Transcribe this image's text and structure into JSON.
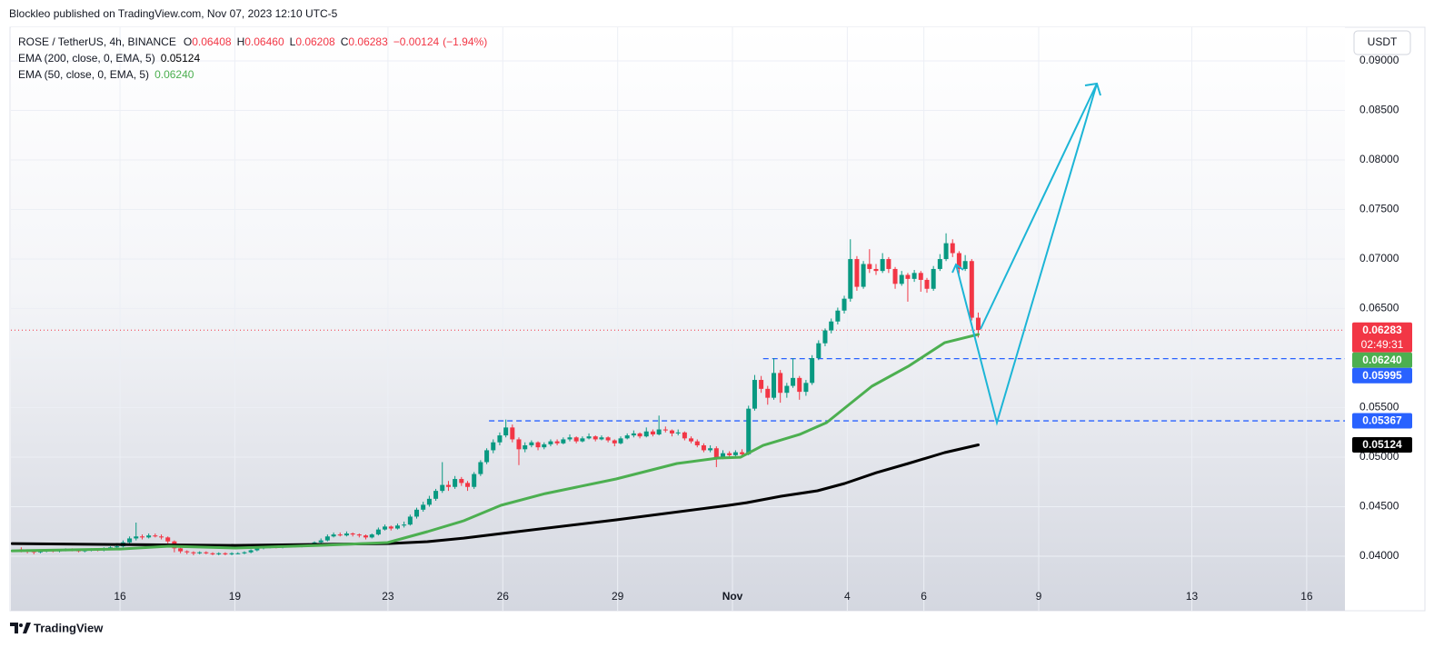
{
  "header": {
    "text": "Blockleo published on TradingView.com, Nov 07, 2023 12:10 UTC-5"
  },
  "footer": {
    "brand": "TradingView"
  },
  "chart_data": {
    "type": "candlestick",
    "currency_button": "USDT",
    "legend": {
      "symbol": "ROSE / TetherUS, 4h, BINANCE",
      "ohlc": [
        {
          "key": "O",
          "value": 0.06408
        },
        {
          "key": "H",
          "value": 0.0646,
          "label": "0.06460"
        },
        {
          "key": "L",
          "value": 0.06208
        },
        {
          "key": "C",
          "value": 0.06283
        }
      ],
      "change": {
        "value": -0.00124,
        "label": "−0.00124"
      },
      "change_pct": {
        "value": -1.94,
        "label": "(−1.94%)"
      },
      "color": "#f23645",
      "indicators": [
        {
          "name": "EMA (200, close, 0, EMA, 5)",
          "value": 0.05124,
          "color": "#000000"
        },
        {
          "name": "EMA (50, close, 0, EMA, 5)",
          "value": 0.0624,
          "label": "0.06240",
          "color": "#4caf50"
        }
      ]
    },
    "up_color": "#089981",
    "down_color": "#f23645",
    "xlim": [
      13.15,
      48
    ],
    "ylim": [
      0.0345,
      0.0934
    ],
    "xticks": [
      16,
      19,
      23,
      26,
      29,
      {
        "value": 32,
        "label": "Nov"
      },
      {
        "value": 35,
        "label": "4"
      },
      {
        "value": 37,
        "label": "6"
      },
      {
        "value": 40,
        "label": "9"
      },
      {
        "value": 44,
        "label": "13"
      },
      {
        "value": 47,
        "label": "16"
      }
    ],
    "yticks": [
      {
        "value": 0.04,
        "label": "0.04000"
      },
      {
        "value": 0.045,
        "label": "0.04500"
      },
      {
        "value": 0.05,
        "label": "0.05000"
      },
      {
        "value": 0.055,
        "label": "0.05500"
      },
      {
        "value": 0.06,
        "label": "0.06000"
      },
      {
        "value": 0.065,
        "label": "0.06500"
      },
      {
        "value": 0.07,
        "label": "0.07000"
      },
      {
        "value": 0.075,
        "label": "0.07500"
      },
      {
        "value": 0.08,
        "label": "0.08000"
      },
      {
        "value": 0.085,
        "label": "0.08500"
      },
      {
        "value": 0.09,
        "label": "0.09000"
      }
    ],
    "grid": true,
    "x": [
      13.42,
      13.58,
      13.75,
      13.92,
      14.08,
      14.25,
      14.42,
      14.58,
      14.75,
      14.92,
      15.08,
      15.25,
      15.42,
      15.58,
      15.75,
      15.92,
      16.08,
      16.25,
      16.42,
      16.58,
      16.75,
      16.92,
      17.08,
      17.25,
      17.42,
      17.58,
      17.75,
      17.92,
      18.08,
      18.25,
      18.42,
      18.58,
      18.75,
      18.92,
      19.08,
      19.25,
      19.42,
      19.58,
      19.75,
      19.92,
      20.08,
      20.25,
      20.42,
      20.58,
      20.75,
      20.92,
      21.08,
      21.25,
      21.42,
      21.58,
      21.75,
      21.92,
      22.08,
      22.25,
      22.42,
      22.58,
      22.75,
      22.92,
      23.08,
      23.25,
      23.42,
      23.58,
      23.75,
      23.92,
      24.08,
      24.25,
      24.42,
      24.58,
      24.75,
      24.92,
      25.08,
      25.25,
      25.42,
      25.58,
      25.75,
      25.92,
      26.08,
      26.25,
      26.42,
      26.58,
      26.75,
      26.92,
      27.08,
      27.25,
      27.42,
      27.58,
      27.75,
      27.92,
      28.08,
      28.25,
      28.42,
      28.58,
      28.75,
      28.92,
      29.08,
      29.25,
      29.42,
      29.58,
      29.75,
      29.92,
      30.08,
      30.25,
      30.42,
      30.58,
      30.75,
      30.92,
      31.08,
      31.25,
      31.42,
      31.58,
      31.75,
      31.92,
      32.08,
      32.25,
      32.42,
      32.58,
      32.75,
      32.92,
      33.08,
      33.25,
      33.42,
      33.58,
      33.75,
      33.92,
      34.08,
      34.25,
      34.42,
      34.58,
      34.75,
      34.92,
      35.08,
      35.25,
      35.42,
      35.58,
      35.75,
      35.92,
      36.08,
      36.25,
      36.42,
      36.58,
      36.75,
      36.92,
      37.08,
      37.25,
      37.42,
      37.58,
      37.75,
      37.92,
      38.08,
      38.25,
      38.42
    ],
    "candles": [
      [
        0.0407,
        0.0409,
        0.0404,
        0.0406
      ],
      [
        0.0406,
        0.0407,
        0.0403,
        0.0405
      ],
      [
        0.0405,
        0.0406,
        0.0402,
        0.0404
      ],
      [
        0.0404,
        0.0406,
        0.0403,
        0.0405
      ],
      [
        0.0405,
        0.0407,
        0.0404,
        0.0406
      ],
      [
        0.0406,
        0.0407,
        0.0404,
        0.0405
      ],
      [
        0.0405,
        0.0407,
        0.0404,
        0.0406
      ],
      [
        0.0406,
        0.0408,
        0.0405,
        0.0407
      ],
      [
        0.0407,
        0.0408,
        0.0405,
        0.0406
      ],
      [
        0.0406,
        0.0407,
        0.0404,
        0.0405
      ],
      [
        0.0405,
        0.0407,
        0.0404,
        0.0406
      ],
      [
        0.0406,
        0.0408,
        0.0405,
        0.0407
      ],
      [
        0.0407,
        0.0408,
        0.0405,
        0.0406
      ],
      [
        0.0406,
        0.0409,
        0.0405,
        0.0408
      ],
      [
        0.0408,
        0.041,
        0.0407,
        0.0409
      ],
      [
        0.0409,
        0.0412,
        0.0408,
        0.041
      ],
      [
        0.041,
        0.0416,
        0.0409,
        0.0414
      ],
      [
        0.0414,
        0.042,
        0.0413,
        0.0418
      ],
      [
        0.0418,
        0.0434,
        0.0416,
        0.042
      ],
      [
        0.042,
        0.0422,
        0.0417,
        0.0419
      ],
      [
        0.0419,
        0.0423,
        0.0418,
        0.0421
      ],
      [
        0.0421,
        0.0423,
        0.0419,
        0.042
      ],
      [
        0.042,
        0.0422,
        0.0417,
        0.0419
      ],
      [
        0.0419,
        0.042,
        0.0413,
        0.0415
      ],
      [
        0.0415,
        0.0416,
        0.0404,
        0.0408
      ],
      [
        0.0408,
        0.0409,
        0.0403,
        0.0405
      ],
      [
        0.0405,
        0.0406,
        0.0402,
        0.0404
      ],
      [
        0.0404,
        0.0405,
        0.0401,
        0.0403
      ],
      [
        0.0403,
        0.0405,
        0.0402,
        0.0404
      ],
      [
        0.0404,
        0.0405,
        0.0402,
        0.0403
      ],
      [
        0.0403,
        0.0404,
        0.0401,
        0.0402
      ],
      [
        0.0402,
        0.0404,
        0.0401,
        0.0403
      ],
      [
        0.0403,
        0.0404,
        0.0401,
        0.0402
      ],
      [
        0.0402,
        0.0404,
        0.0401,
        0.0403
      ],
      [
        0.0403,
        0.0404,
        0.0402,
        0.0403
      ],
      [
        0.0403,
        0.0405,
        0.0402,
        0.0404
      ],
      [
        0.0404,
        0.0407,
        0.0403,
        0.0406
      ],
      [
        0.0406,
        0.0409,
        0.0405,
        0.0408
      ],
      [
        0.0408,
        0.0411,
        0.0407,
        0.0409
      ],
      [
        0.0409,
        0.0412,
        0.0408,
        0.041
      ],
      [
        0.041,
        0.0411,
        0.0408,
        0.0409
      ],
      [
        0.0409,
        0.0411,
        0.0408,
        0.041
      ],
      [
        0.041,
        0.0412,
        0.0409,
        0.0411
      ],
      [
        0.0411,
        0.0412,
        0.0409,
        0.041
      ],
      [
        0.041,
        0.0412,
        0.0409,
        0.0411
      ],
      [
        0.0411,
        0.0413,
        0.041,
        0.0412
      ],
      [
        0.0412,
        0.0415,
        0.0411,
        0.0414
      ],
      [
        0.0414,
        0.0418,
        0.0413,
        0.0416
      ],
      [
        0.0416,
        0.0422,
        0.0415,
        0.042
      ],
      [
        0.042,
        0.0424,
        0.0419,
        0.0422
      ],
      [
        0.0422,
        0.0424,
        0.042,
        0.0421
      ],
      [
        0.0421,
        0.0425,
        0.042,
        0.0423
      ],
      [
        0.0423,
        0.0424,
        0.042,
        0.0422
      ],
      [
        0.0422,
        0.0423,
        0.0419,
        0.0421
      ],
      [
        0.0421,
        0.0422,
        0.0417,
        0.0419
      ],
      [
        0.0419,
        0.0423,
        0.0418,
        0.0422
      ],
      [
        0.0422,
        0.0429,
        0.0421,
        0.0427
      ],
      [
        0.0427,
        0.0432,
        0.0426,
        0.043
      ],
      [
        0.043,
        0.0431,
        0.0426,
        0.0428
      ],
      [
        0.0428,
        0.0433,
        0.0427,
        0.0431
      ],
      [
        0.0431,
        0.0435,
        0.0429,
        0.0432
      ],
      [
        0.0432,
        0.0442,
        0.0431,
        0.044
      ],
      [
        0.044,
        0.0449,
        0.0438,
        0.0447
      ],
      [
        0.0447,
        0.0455,
        0.0445,
        0.0452
      ],
      [
        0.0452,
        0.0461,
        0.045,
        0.0458
      ],
      [
        0.0458,
        0.0468,
        0.0456,
        0.0466
      ],
      [
        0.0466,
        0.0495,
        0.0464,
        0.0472
      ],
      [
        0.0472,
        0.0476,
        0.0466,
        0.047
      ],
      [
        0.047,
        0.0481,
        0.0468,
        0.0478
      ],
      [
        0.0478,
        0.048,
        0.0471,
        0.0474
      ],
      [
        0.0474,
        0.0476,
        0.0466,
        0.047
      ],
      [
        0.047,
        0.0485,
        0.0468,
        0.0483
      ],
      [
        0.0483,
        0.0497,
        0.0481,
        0.0495
      ],
      [
        0.0495,
        0.0509,
        0.0493,
        0.0507
      ],
      [
        0.0507,
        0.0518,
        0.0504,
        0.0515
      ],
      [
        0.0515,
        0.0525,
        0.0512,
        0.0522
      ],
      [
        0.0522,
        0.0538,
        0.052,
        0.053
      ],
      [
        0.053,
        0.0533,
        0.0515,
        0.0518
      ],
      [
        0.0518,
        0.052,
        0.0492,
        0.0508
      ],
      [
        0.0508,
        0.0515,
        0.0505,
        0.0512
      ],
      [
        0.0512,
        0.0517,
        0.051,
        0.0515
      ],
      [
        0.0515,
        0.0516,
        0.0507,
        0.051
      ],
      [
        0.051,
        0.0515,
        0.0508,
        0.0513
      ],
      [
        0.0513,
        0.0518,
        0.0511,
        0.0516
      ],
      [
        0.0516,
        0.0518,
        0.0512,
        0.0514
      ],
      [
        0.0514,
        0.052,
        0.0513,
        0.0518
      ],
      [
        0.0518,
        0.0523,
        0.0516,
        0.052
      ],
      [
        0.052,
        0.0521,
        0.0514,
        0.0516
      ],
      [
        0.0516,
        0.0521,
        0.0515,
        0.0519
      ],
      [
        0.0519,
        0.0524,
        0.0518,
        0.0521
      ],
      [
        0.0521,
        0.0522,
        0.0516,
        0.0518
      ],
      [
        0.0518,
        0.0522,
        0.0517,
        0.052
      ],
      [
        0.052,
        0.0521,
        0.0515,
        0.0517
      ],
      [
        0.0517,
        0.0518,
        0.0511,
        0.0514
      ],
      [
        0.0514,
        0.0521,
        0.0513,
        0.0519
      ],
      [
        0.0519,
        0.0524,
        0.0518,
        0.0522
      ],
      [
        0.0522,
        0.0527,
        0.052,
        0.0524
      ],
      [
        0.0524,
        0.0525,
        0.0519,
        0.0521
      ],
      [
        0.0521,
        0.053,
        0.052,
        0.0526
      ],
      [
        0.0526,
        0.0528,
        0.0521,
        0.0523
      ],
      [
        0.0523,
        0.0542,
        0.0522,
        0.0528
      ],
      [
        0.0528,
        0.0531,
        0.0525,
        0.0527
      ],
      [
        0.0527,
        0.0528,
        0.0521,
        0.0524
      ],
      [
        0.0524,
        0.0528,
        0.0522,
        0.0525
      ],
      [
        0.0525,
        0.0526,
        0.0517,
        0.0519
      ],
      [
        0.0519,
        0.0521,
        0.0514,
        0.0516
      ],
      [
        0.0516,
        0.0518,
        0.051,
        0.0512
      ],
      [
        0.0512,
        0.0514,
        0.0505,
        0.0507
      ],
      [
        0.0507,
        0.0512,
        0.0505,
        0.0509
      ],
      [
        0.0509,
        0.0511,
        0.049,
        0.05
      ],
      [
        0.05,
        0.0507,
        0.0498,
        0.0504
      ],
      [
        0.0504,
        0.0506,
        0.0499,
        0.0502
      ],
      [
        0.0502,
        0.0507,
        0.05,
        0.0505
      ],
      [
        0.0505,
        0.0508,
        0.05,
        0.0503
      ],
      [
        0.0503,
        0.0552,
        0.0502,
        0.0549
      ],
      [
        0.0549,
        0.0583,
        0.0547,
        0.0578
      ],
      [
        0.0578,
        0.0582,
        0.0565,
        0.0569
      ],
      [
        0.0569,
        0.0572,
        0.0553,
        0.056
      ],
      [
        0.056,
        0.06,
        0.0558,
        0.0585
      ],
      [
        0.0585,
        0.0588,
        0.0555,
        0.0565
      ],
      [
        0.0565,
        0.0575,
        0.056,
        0.0572
      ],
      [
        0.0572,
        0.06,
        0.057,
        0.058
      ],
      [
        0.058,
        0.0582,
        0.0558,
        0.0566
      ],
      [
        0.0566,
        0.0578,
        0.0562,
        0.0575
      ],
      [
        0.0575,
        0.0603,
        0.0573,
        0.06
      ],
      [
        0.06,
        0.0618,
        0.0598,
        0.0615
      ],
      [
        0.0615,
        0.063,
        0.0612,
        0.0628
      ],
      [
        0.0628,
        0.064,
        0.0625,
        0.0637
      ],
      [
        0.0637,
        0.0651,
        0.0634,
        0.0648
      ],
      [
        0.0648,
        0.0663,
        0.0645,
        0.066
      ],
      [
        0.066,
        0.072,
        0.0657,
        0.07
      ],
      [
        0.07,
        0.0703,
        0.0668,
        0.0672
      ],
      [
        0.0672,
        0.0698,
        0.067,
        0.0695
      ],
      [
        0.0695,
        0.071,
        0.0686,
        0.069
      ],
      [
        0.069,
        0.0695,
        0.0684,
        0.0688
      ],
      [
        0.0688,
        0.0706,
        0.0686,
        0.07
      ],
      [
        0.07,
        0.0702,
        0.0686,
        0.069
      ],
      [
        0.069,
        0.0692,
        0.067,
        0.0675
      ],
      [
        0.0675,
        0.0688,
        0.0673,
        0.0684
      ],
      [
        0.0684,
        0.0686,
        0.0657,
        0.068
      ],
      [
        0.068,
        0.0689,
        0.0677,
        0.0686
      ],
      [
        0.0686,
        0.0688,
        0.0667,
        0.0679
      ],
      [
        0.0679,
        0.0681,
        0.0666,
        0.067
      ],
      [
        0.067,
        0.0693,
        0.0668,
        0.069
      ],
      [
        0.069,
        0.0705,
        0.0688,
        0.07
      ],
      [
        0.07,
        0.0726,
        0.0698,
        0.0716
      ],
      [
        0.0716,
        0.072,
        0.0702,
        0.0706
      ],
      [
        0.0706,
        0.0708,
        0.0685,
        0.069
      ],
      [
        0.069,
        0.0704,
        0.0688,
        0.0698
      ],
      [
        0.0698,
        0.07,
        0.0638,
        0.06408
      ],
      [
        0.06408,
        0.0646,
        0.06208,
        0.06283
      ]
    ],
    "lines": [
      {
        "color": "#000000",
        "x": [
          13.18,
          16,
          19.01,
          22.99,
          24.03,
          24.98,
          25.95,
          28.96,
          31.9,
          32.37,
          33.27,
          34.22,
          34.93,
          35.76,
          36.59,
          37.54,
          38.42
        ],
        "values": [
          0.04128,
          0.04119,
          0.0411,
          0.04128,
          0.04147,
          0.04183,
          0.04229,
          0.04367,
          0.04514,
          0.04541,
          0.04606,
          0.04661,
          0.04734,
          0.04844,
          0.04936,
          0.05046,
          0.05124
        ]
      },
      {
        "color": "#4caf50",
        "x": [
          13.18,
          16,
          17.28,
          19.01,
          21.19,
          22.99,
          24.03,
          24.98,
          25.95,
          27.11,
          28.96,
          30.55,
          31.62,
          32.21,
          32.8,
          33.75,
          34.46,
          35.64,
          36.59,
          37.54,
          38.42
        ],
        "values": [
          0.04055,
          0.04073,
          0.04101,
          0.04083,
          0.0411,
          0.04138,
          0.04248,
          0.04358,
          0.04514,
          0.04633,
          0.0478,
          0.04936,
          0.04991,
          0.05,
          0.05119,
          0.05229,
          0.05349,
          0.05716,
          0.05917,
          0.06156,
          0.0624
        ]
      }
    ],
    "levels": [
      {
        "value": 0.05995,
        "x_start": 32.8,
        "color": "#2962ff"
      },
      {
        "value": 0.05367,
        "x_start": 25.64,
        "color": "#2962ff"
      }
    ],
    "price_tags": [
      {
        "value": 0.06283,
        "color": "#f23645",
        "sub": "02:49:31"
      },
      {
        "value": 0.0624,
        "label": "0.06240",
        "color": "#4caf50"
      },
      {
        "value": 0.05995,
        "color": "#2962ff"
      },
      {
        "value": 0.05367,
        "color": "#2962ff"
      },
      {
        "value": 0.05124,
        "color": "#000000"
      }
    ]
  }
}
